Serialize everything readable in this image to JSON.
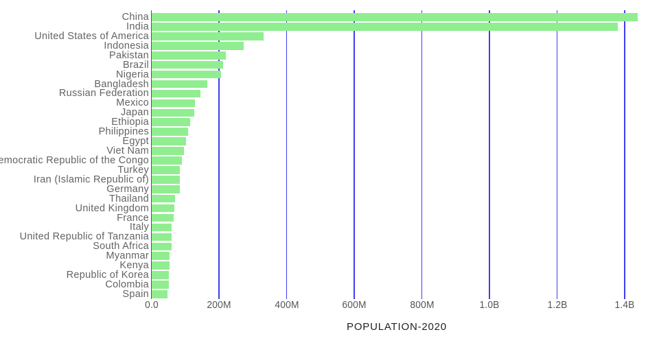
{
  "chart_data": {
    "type": "bar",
    "orientation": "horizontal",
    "title": "",
    "xlabel": "POPULATION-2020",
    "ylabel": "",
    "unit": "persons (millions)",
    "grid": true,
    "x_ticks": [
      "0.0",
      "200M",
      "400M",
      "600M",
      "800M",
      "1.0B",
      "1.2B",
      "1.4B"
    ],
    "x_tick_values_m": [
      0,
      200,
      400,
      600,
      800,
      1000,
      1200,
      1400
    ],
    "xlim_m": [
      0,
      1451
    ],
    "categories": [
      "China",
      "India",
      "United States of America",
      "Indonesia",
      "Pakistan",
      "Brazil",
      "Nigeria",
      "Bangladesh",
      "Russian Federation",
      "Mexico",
      "Japan",
      "Ethiopia",
      "Philippines",
      "Egypt",
      "Viet Nam",
      "Democratic Republic of the Congo",
      "Turkey",
      "Iran (Islamic Republic of)",
      "Germany",
      "Thailand",
      "United Kingdom",
      "France",
      "Italy",
      "United Republic of Tanzania",
      "South Africa",
      "Myanmar",
      "Kenya",
      "Republic of Korea",
      "Colombia",
      "Spain"
    ],
    "values_m": [
      1439.3,
      1380.0,
      331.0,
      273.5,
      220.9,
      212.6,
      206.1,
      164.7,
      145.9,
      128.9,
      126.5,
      115.0,
      109.6,
      102.3,
      97.3,
      89.6,
      84.3,
      84.0,
      83.8,
      69.8,
      67.9,
      65.3,
      60.5,
      59.7,
      59.3,
      54.4,
      53.8,
      51.3,
      50.9,
      46.8
    ],
    "colors": {
      "bar": "#90EE90",
      "gridline": "#3d3df0",
      "category_label": "#636363",
      "tick_label": "#555555",
      "axis_title": "#222222"
    }
  }
}
